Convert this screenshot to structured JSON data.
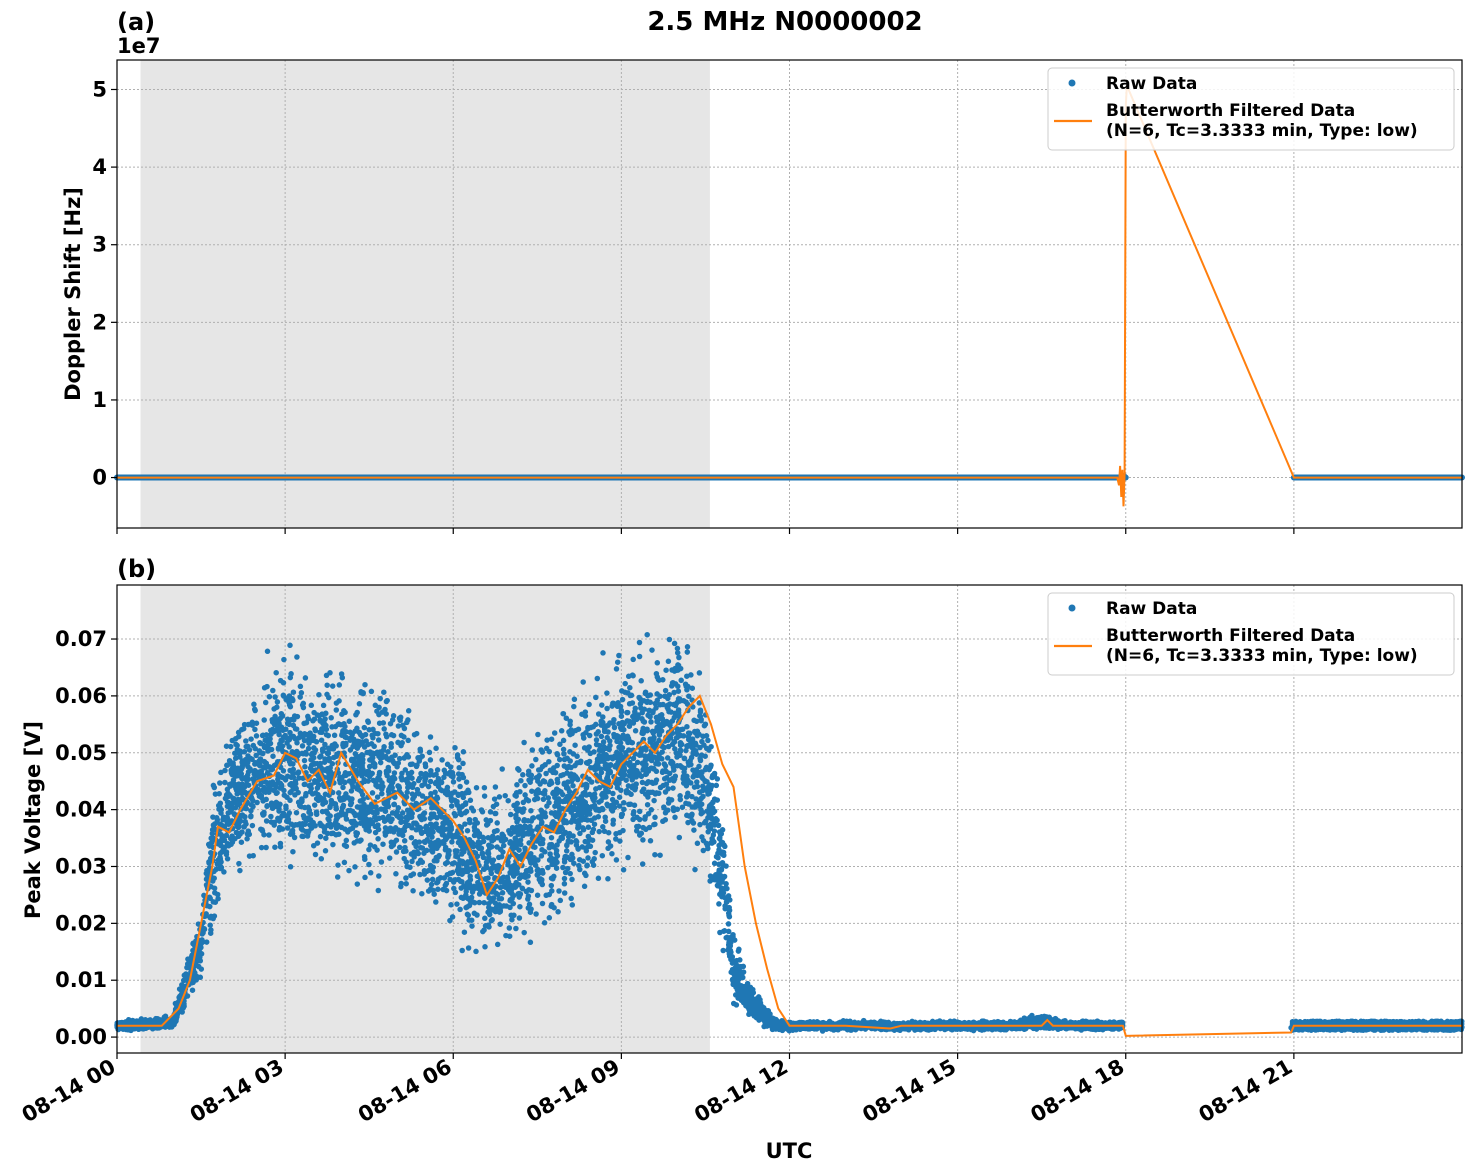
{
  "figure": {
    "title": "2.5 MHz N0000002",
    "xlabel": "UTC"
  },
  "chart_data": [
    {
      "panel": "(a)",
      "type": "line",
      "ylabel": "Doppler Shift [Hz]",
      "y_offset_label": "1e7",
      "y_scale": 10000000,
      "ylim": [
        -0.65,
        5.38
      ],
      "yticks": [
        0,
        1,
        2,
        3,
        4,
        5
      ],
      "ytick_labels": [
        "0",
        "1",
        "2",
        "3",
        "4",
        "5"
      ],
      "xlim_hours": [
        0,
        24
      ],
      "xticks_hours": [
        0,
        3,
        6,
        9,
        12,
        15,
        18,
        21
      ],
      "xtick_labels": [
        "08-14 00",
        "08-14 03",
        "08-14 06",
        "08-14 09",
        "08-14 12",
        "08-14 15",
        "08-14 18",
        "08-14 21"
      ],
      "shaded_region_hours": [
        0.42,
        10.58
      ],
      "grid": true,
      "legend_position": "top-right",
      "series": [
        {
          "name": "Raw Data",
          "style": "dots",
          "color": "#1f77b4",
          "x_hours": [
            0,
            3,
            6,
            9,
            12,
            15,
            17.9,
            17.97,
            18.0,
            21.0,
            22.5,
            24.0
          ],
          "y": [
            0,
            0,
            0,
            0,
            0,
            0,
            0,
            0.02,
            0,
            0,
            0,
            0
          ]
        },
        {
          "name": "Butterworth Filtered Data\n(N=6, Tc=3.3333 min, Type: low)",
          "legend_lines": [
            "Butterworth Filtered Data",
            "(N=6, Tc=3.3333 min, Type: low)"
          ],
          "style": "line",
          "color": "#ff7f0e",
          "x_hours": [
            0,
            6,
            12,
            17.85,
            17.88,
            17.9,
            17.92,
            17.94,
            17.96,
            17.98,
            18.0,
            18.02,
            21.0,
            24.0
          ],
          "y": [
            0,
            0,
            0,
            0,
            -0.1,
            0.15,
            -0.25,
            0.1,
            -0.37,
            0.05,
            4.8,
            5.05,
            0,
            0
          ]
        }
      ]
    },
    {
      "panel": "(b)",
      "type": "scatter",
      "ylabel": "Peak Voltage [V]",
      "ylim": [
        -0.0028,
        0.0795
      ],
      "yticks": [
        0.0,
        0.01,
        0.02,
        0.03,
        0.04,
        0.05,
        0.06,
        0.07
      ],
      "ytick_labels": [
        "0.00",
        "0.01",
        "0.02",
        "0.03",
        "0.04",
        "0.05",
        "0.06",
        "0.07"
      ],
      "xlim_hours": [
        0,
        24
      ],
      "xticks_hours": [
        0,
        3,
        6,
        9,
        12,
        15,
        18,
        21
      ],
      "xtick_labels": [
        "08-14 00",
        "08-14 03",
        "08-14 06",
        "08-14 09",
        "08-14 12",
        "08-14 15",
        "08-14 18",
        "08-14 21"
      ],
      "shaded_region_hours": [
        0.42,
        10.58
      ],
      "grid": true,
      "legend_position": "top-right",
      "series": [
        {
          "name": "Raw Data",
          "style": "dots",
          "color": "#1f77b4",
          "envelope": {
            "x_hours": [
              0,
              1.0,
              1.2,
              1.5,
              1.7,
              1.8,
              2.0,
              2.5,
              3.0,
              3.5,
              4.0,
              4.5,
              5.0,
              5.5,
              6.0,
              6.3,
              6.6,
              7.0,
              7.5,
              8.0,
              8.5,
              9.0,
              9.5,
              10.0,
              10.3,
              10.5,
              10.7,
              10.85,
              11.0,
              11.3,
              11.7,
              12.0,
              13.0,
              14.0,
              15.0,
              16.0,
              16.5,
              17.0,
              17.5,
              17.95
            ],
            "upper": [
              0.003,
              0.004,
              0.014,
              0.023,
              0.046,
              0.05,
              0.056,
              0.066,
              0.073,
              0.069,
              0.07,
              0.066,
              0.064,
              0.059,
              0.057,
              0.05,
              0.047,
              0.05,
              0.058,
              0.063,
              0.067,
              0.071,
              0.074,
              0.076,
              0.07,
              0.065,
              0.05,
              0.04,
              0.02,
              0.01,
              0.004,
              0.003,
              0.003,
              0.003,
              0.003,
              0.003,
              0.0045,
              0.003,
              0.003,
              0.003
            ],
            "lower": [
              0.001,
              0.001,
              0.003,
              0.009,
              0.016,
              0.02,
              0.025,
              0.027,
              0.023,
              0.024,
              0.023,
              0.022,
              0.021,
              0.019,
              0.016,
              0.012,
              0.011,
              0.013,
              0.015,
              0.018,
              0.022,
              0.025,
              0.028,
              0.03,
              0.028,
              0.026,
              0.018,
              0.01,
              0.005,
              0.002,
              0.001,
              0.001,
              0.001,
              0.001,
              0.001,
              0.001,
              0.001,
              0.001,
              0.001,
              0.001
            ]
          },
          "late_segment": {
            "x_hours": [
              20.95,
              24.0
            ],
            "upper": 0.0028,
            "lower": 0.0012
          }
        },
        {
          "name": "Butterworth Filtered Data\n(N=6, Tc=3.3333 min, Type: low)",
          "legend_lines": [
            "Butterworth Filtered Data",
            "(N=6, Tc=3.3333 min, Type: low)"
          ],
          "style": "line",
          "color": "#ff7f0e",
          "x_hours": [
            0,
            0.8,
            1.1,
            1.3,
            1.5,
            1.7,
            1.8,
            2.0,
            2.2,
            2.5,
            2.8,
            3.0,
            3.2,
            3.4,
            3.6,
            3.8,
            4.0,
            4.3,
            4.6,
            5.0,
            5.3,
            5.6,
            5.8,
            6.0,
            6.2,
            6.4,
            6.6,
            6.8,
            7.0,
            7.2,
            7.4,
            7.6,
            7.8,
            8.0,
            8.2,
            8.4,
            8.6,
            8.8,
            9.0,
            9.2,
            9.4,
            9.6,
            9.8,
            10.0,
            10.2,
            10.4,
            10.6,
            10.8,
            11.0,
            11.2,
            11.4,
            11.6,
            11.8,
            12.0,
            13.0,
            13.8,
            14.0,
            15.0,
            16.0,
            16.5,
            16.6,
            16.7,
            17.0,
            17.5,
            17.95,
            18.0,
            20.95,
            21.0,
            22.5,
            24.0
          ],
          "y": [
            0.002,
            0.002,
            0.005,
            0.01,
            0.02,
            0.03,
            0.037,
            0.036,
            0.04,
            0.045,
            0.046,
            0.05,
            0.049,
            0.045,
            0.047,
            0.043,
            0.05,
            0.045,
            0.041,
            0.043,
            0.04,
            0.042,
            0.04,
            0.038,
            0.035,
            0.031,
            0.025,
            0.028,
            0.033,
            0.03,
            0.034,
            0.037,
            0.036,
            0.04,
            0.043,
            0.047,
            0.045,
            0.044,
            0.048,
            0.05,
            0.052,
            0.05,
            0.053,
            0.055,
            0.058,
            0.06,
            0.055,
            0.048,
            0.044,
            0.03,
            0.02,
            0.012,
            0.005,
            0.002,
            0.002,
            0.0015,
            0.002,
            0.002,
            0.002,
            0.002,
            0.003,
            0.002,
            0.002,
            0.002,
            0.002,
            0.0002,
            0.0008,
            0.002,
            0.002,
            0.002
          ]
        }
      ]
    }
  ]
}
